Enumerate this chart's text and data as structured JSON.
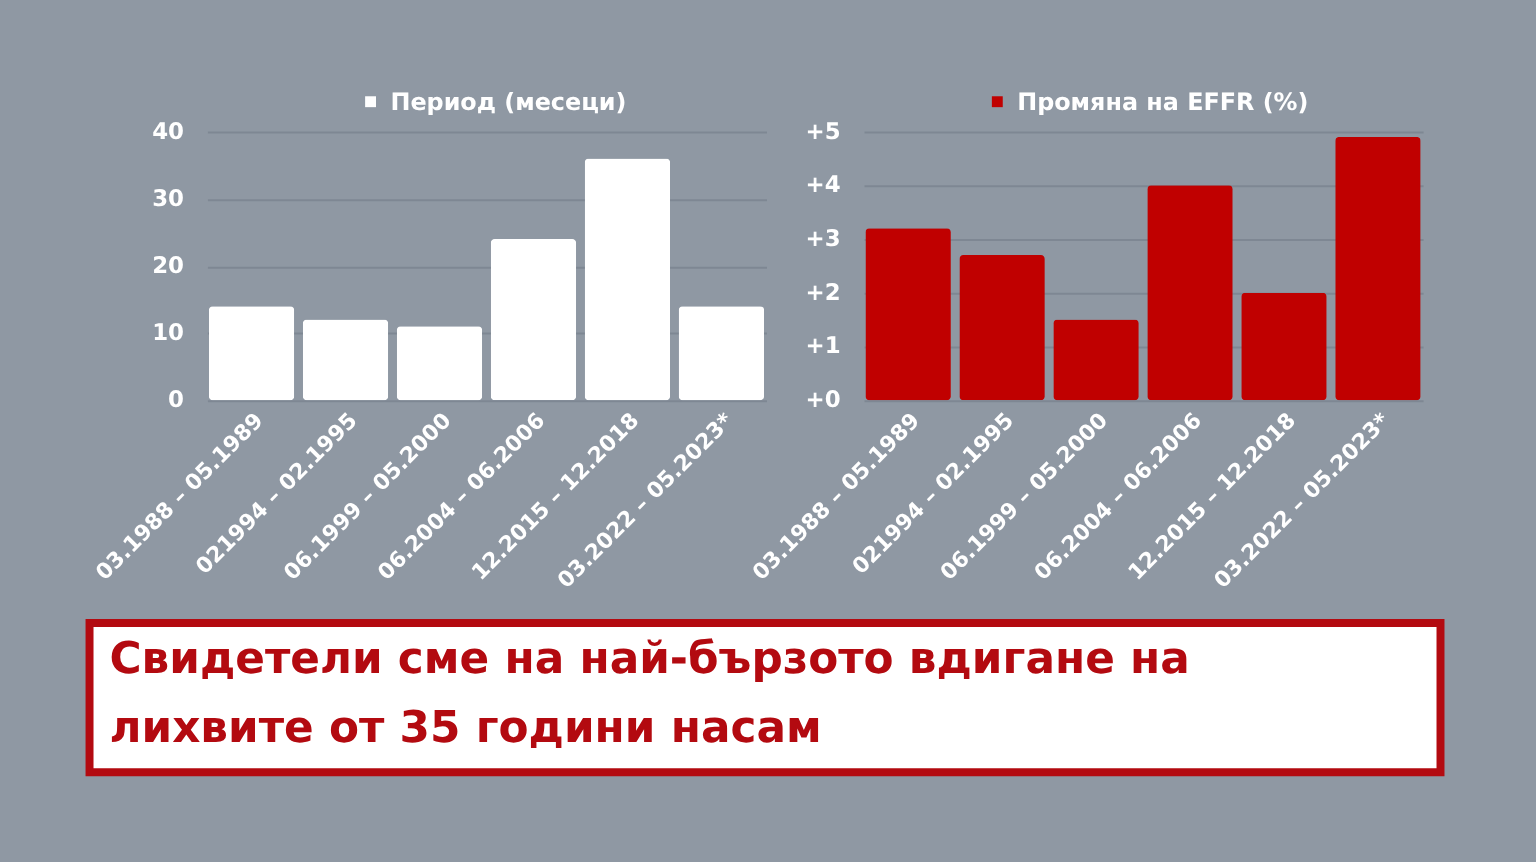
{
  "chart_data": [
    {
      "type": "bar",
      "categories": [
        "03.1988 – 05.1989",
        "021994 – 02.1995",
        "06.1999 – 05.2000",
        "06.2004 – 06.2006",
        "12.2015 – 12.2018",
        "03.2022 – 05.2023*"
      ],
      "series": [
        {
          "name": "Период (месеци)",
          "color": "#ffffff",
          "values": [
            14,
            12,
            11,
            24,
            36,
            14
          ]
        }
      ],
      "ylim": [
        0,
        40
      ],
      "yticks": [
        0,
        10,
        20,
        30,
        40
      ],
      "grid": "y",
      "legend": "top"
    },
    {
      "type": "bar",
      "categories": [
        "03.1988 – 05.1989",
        "021994 – 02.1995",
        "06.1999 – 05.2000",
        "06.2004 – 06.2006",
        "12.2015 – 12.2018",
        "03.2022 – 05.2023*"
      ],
      "series": [
        {
          "name": "Промяна на EFFR (%)",
          "color": "#c00000",
          "values": [
            3.2,
            2.7,
            1.5,
            4.0,
            2.0,
            4.9
          ]
        }
      ],
      "ylim": [
        0,
        5
      ],
      "yticks": [
        {
          "value": 0,
          "label": "+0"
        },
        {
          "value": 1,
          "label": "+1"
        },
        {
          "value": 2,
          "label": "+2"
        },
        {
          "value": 3,
          "label": "+3"
        },
        {
          "value": 4,
          "label": "+4"
        },
        {
          "value": 5,
          "label": "+5"
        }
      ],
      "grid": "y",
      "legend": "top"
    },
    {
      "type": "other",
      "title": "Свидетели сме на най-бързото вдигане на лихвите от 35 години насам"
    }
  ]
}
